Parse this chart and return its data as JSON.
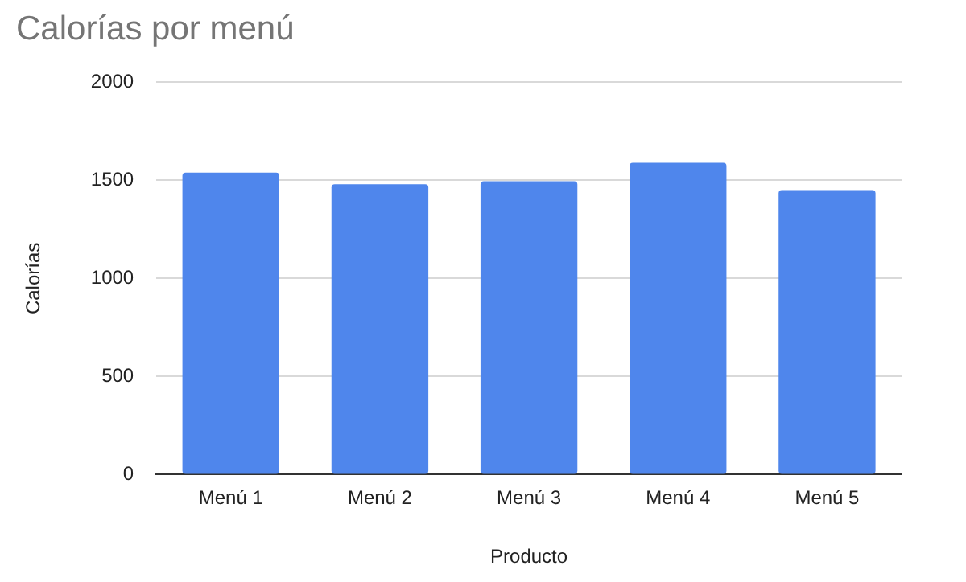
{
  "chart_data": {
    "type": "bar",
    "title": "Calorías por menú",
    "xlabel": "Producto",
    "ylabel": "Calorías",
    "categories": [
      "Menú 1",
      "Menú 2",
      "Menú 3",
      "Menú 4",
      "Menú 5"
    ],
    "values": [
      1540,
      1480,
      1495,
      1590,
      1450
    ],
    "color": "#4f86ec",
    "ylim": [
      0,
      2000
    ],
    "yticks": [
      0,
      500,
      1000,
      1500,
      2000
    ],
    "grid": "y"
  }
}
